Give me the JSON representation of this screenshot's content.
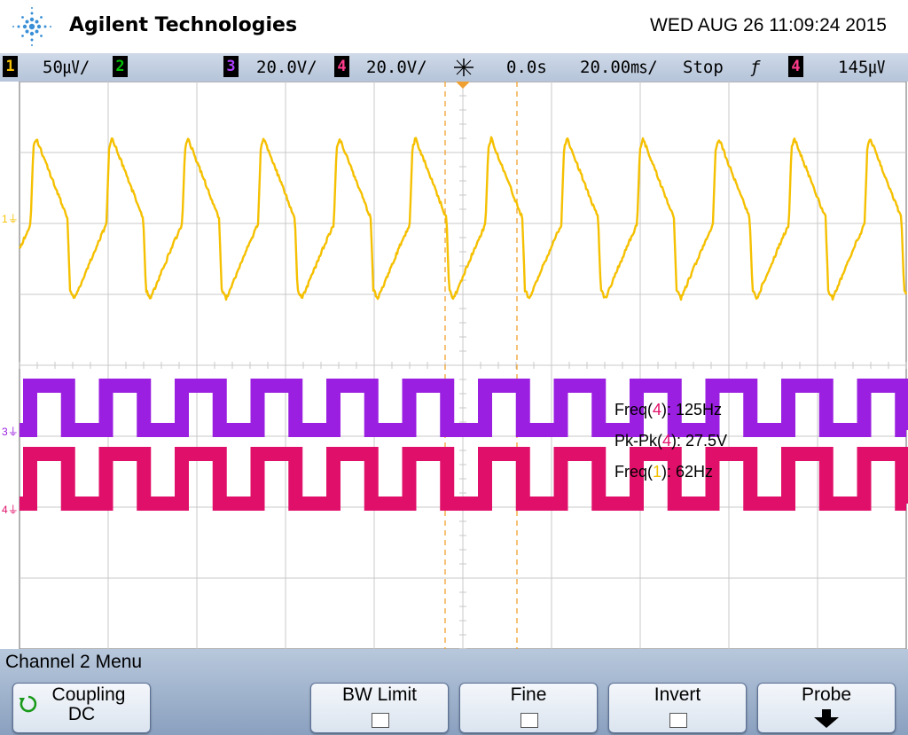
{
  "header": {
    "brand": "Agilent Technologies",
    "datetime": "WED AUG 26 11:09:24 2015",
    "logo_icon": "agilent-spark-icon"
  },
  "status": {
    "ch1_num": "1",
    "ch1_scale": "50㎶/",
    "ch2_num": "2",
    "ch3_num": "3",
    "ch3_scale": "20.0V/",
    "ch4_num": "4",
    "ch4_scale": "20.0V/",
    "delay": "0.0s",
    "timebase": "20.00㎳/",
    "run_state": "Stop",
    "trigger_edge": "ƒ",
    "trigger_ch": "4",
    "trigger_level": "145㎶"
  },
  "measurements": {
    "m1_pre": "Freq(",
    "m1_ch": "4",
    "m1_post": "): 125Hz",
    "m2_pre": "Pk-Pk(",
    "m2_ch": "4",
    "m2_post": "): 27.5V",
    "m3_pre": "Freq(",
    "m3_ch": "1",
    "m3_post": "): 62Hz"
  },
  "markers": {
    "ch1": "1",
    "ch3": "3",
    "ch4": "4"
  },
  "menu": {
    "title": "Channel 2  Menu",
    "coupling_label": "Coupling",
    "coupling_value": "DC",
    "bw_limit": "BW Limit",
    "fine": "Fine",
    "invert": "Invert",
    "probe": "Probe"
  },
  "colors": {
    "ch1": "#f5c000",
    "ch2": "#00c000",
    "ch3": "#9a1fe0",
    "ch4": "#e0106a",
    "grid": "#c8c8c8",
    "cursor": "#f0a030"
  },
  "waveforms": {
    "ch1_freq_hz": 62,
    "ch4_freq_hz": 125,
    "ch4_pkpk_v": 27.5
  }
}
